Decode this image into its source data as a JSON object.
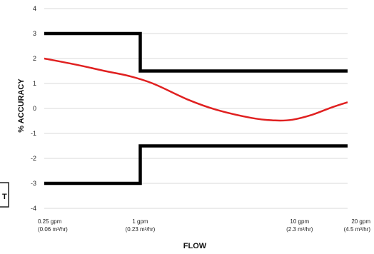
{
  "chart_data": {
    "type": "line",
    "xlabel": "FLOW",
    "ylabel": "% ACCURACY",
    "x_scale": "log",
    "ylim": [
      -4,
      4
    ],
    "y_ticks": [
      "4",
      "3",
      "2",
      "1",
      "0",
      "-1",
      "-2",
      "-3",
      "-4"
    ],
    "x_ticks": [
      {
        "value": 0.25,
        "label": "0.25 gpm",
        "sublabel": "(0.06 m³/hr)"
      },
      {
        "value": 1,
        "label": "1 gpm",
        "sublabel": "(0.23 m³/hr)"
      },
      {
        "value": 10,
        "label": "10 gpm",
        "sublabel": "(2.3 m³/hr)"
      },
      {
        "value": 20,
        "label": "20 gpm",
        "sublabel": "(4.5 m³/hr)"
      }
    ],
    "grid": true,
    "series": [
      {
        "color": "#000000",
        "points": [
          [
            0.25,
            3.0
          ],
          [
            1.0,
            3.0
          ],
          [
            1.0,
            1.5
          ],
          [
            20,
            1.5
          ]
        ]
      },
      {
        "color": "#000000",
        "points": [
          [
            0.25,
            -3.0
          ],
          [
            1.0,
            -3.0
          ],
          [
            1.0,
            -1.5
          ],
          [
            20,
            -1.5
          ]
        ]
      },
      {
        "color": "#e02020",
        "points": [
          [
            0.25,
            2.0
          ],
          [
            0.4,
            1.75
          ],
          [
            0.6,
            1.5
          ],
          [
            0.85,
            1.3
          ],
          [
            1.2,
            1.0
          ],
          [
            2,
            0.35
          ],
          [
            3,
            -0.05
          ],
          [
            5,
            -0.38
          ],
          [
            7,
            -0.48
          ],
          [
            9,
            -0.45
          ],
          [
            12,
            -0.25
          ],
          [
            16,
            0.05
          ],
          [
            20,
            0.25
          ]
        ]
      }
    ]
  }
}
